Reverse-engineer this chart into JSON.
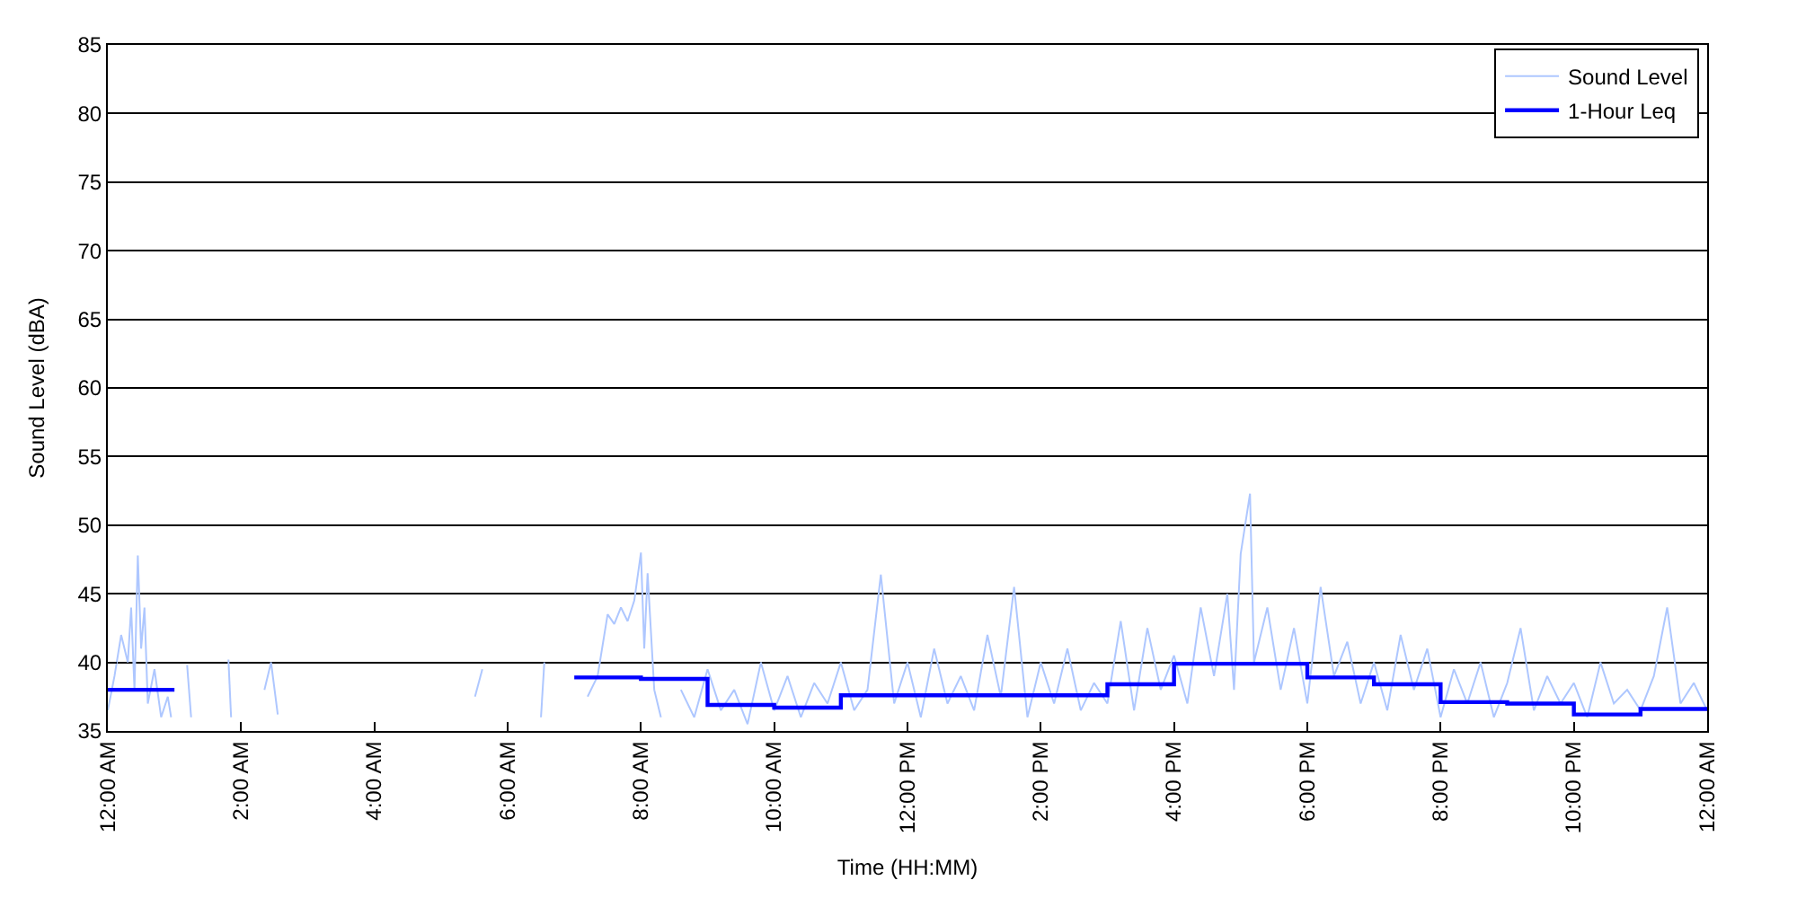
{
  "chart_data": {
    "type": "line",
    "xlabel": "Time (HH:MM)",
    "ylabel": "Sound Level (dBA)",
    "xlim": [
      0,
      24
    ],
    "ylim": [
      35,
      85
    ],
    "xticks": [
      {
        "value": 0,
        "label": "12:00 AM"
      },
      {
        "value": 2,
        "label": "2:00 AM"
      },
      {
        "value": 4,
        "label": "4:00 AM"
      },
      {
        "value": 6,
        "label": "6:00 AM"
      },
      {
        "value": 8,
        "label": "8:00 AM"
      },
      {
        "value": 10,
        "label": "10:00 AM"
      },
      {
        "value": 12,
        "label": "12:00 PM"
      },
      {
        "value": 14,
        "label": "2:00 PM"
      },
      {
        "value": 16,
        "label": "4:00 PM"
      },
      {
        "value": 18,
        "label": "6:00 PM"
      },
      {
        "value": 20,
        "label": "8:00 PM"
      },
      {
        "value": 22,
        "label": "10:00 PM"
      },
      {
        "value": 24,
        "label": "12:00 AM"
      }
    ],
    "yticks": [
      35,
      40,
      45,
      50,
      55,
      60,
      65,
      70,
      75,
      80,
      85
    ],
    "grid": "y",
    "legend": "top right",
    "series": [
      {
        "name": "Sound Level",
        "color": "#aec7ff",
        "x": [
          0,
          0.1,
          0.2,
          0.3,
          0.35,
          0.4,
          0.45,
          0.5,
          0.55,
          0.6,
          0.7,
          0.8,
          0.9,
          0.95,
          1.0,
          1.19,
          1.25,
          1.3,
          1.81,
          1.85,
          1.9,
          2.35,
          2.45,
          2.55,
          2.6,
          5.51,
          5.62,
          5.7,
          6.5,
          6.55,
          6.6,
          7.2,
          7.35,
          7.5,
          7.6,
          7.7,
          7.8,
          7.9,
          8.0,
          8.05,
          8.1,
          8.2,
          8.3,
          8.4,
          8.6,
          8.8,
          9.0,
          9.2,
          9.4,
          9.6,
          9.8,
          10.0,
          10.2,
          10.4,
          10.6,
          10.8,
          11.0,
          11.2,
          11.4,
          11.6,
          11.8,
          12.0,
          12.2,
          12.4,
          12.6,
          12.8,
          13.0,
          13.2,
          13.4,
          13.6,
          13.8,
          14.0,
          14.2,
          14.4,
          14.6,
          14.8,
          15.0,
          15.2,
          15.4,
          15.6,
          15.8,
          16.0,
          16.2,
          16.4,
          16.6,
          16.8,
          16.9,
          17.0,
          17.14,
          17.2,
          17.4,
          17.6,
          17.8,
          18.0,
          18.2,
          18.4,
          18.6,
          18.8,
          19.0,
          19.2,
          19.4,
          19.6,
          19.8,
          20.0,
          20.2,
          20.4,
          20.6,
          20.8,
          21.0,
          21.2,
          21.4,
          21.6,
          21.8,
          22.0,
          22.2,
          22.4,
          22.6,
          22.8,
          23.0,
          23.2,
          23.4,
          23.6,
          23.8,
          24.0
        ],
        "values": [
          36.5,
          39,
          42,
          40,
          44,
          38,
          47.8,
          41,
          44,
          37,
          39.5,
          36,
          37.5,
          36,
          null,
          39.8,
          36,
          null,
          40.2,
          36,
          null,
          38,
          40,
          36.2,
          null,
          37.5,
          39.5,
          null,
          36,
          40,
          null,
          37.5,
          39,
          43.5,
          42.8,
          44,
          43,
          44.5,
          48,
          41,
          46.5,
          38,
          36,
          null,
          38,
          36,
          39.5,
          36.5,
          38,
          35.5,
          40,
          36.5,
          39,
          36,
          38.5,
          37,
          40,
          36.5,
          38,
          46.4,
          37,
          40,
          36,
          41,
          37,
          39,
          36.5,
          42,
          37.5,
          45.5,
          36,
          40,
          37,
          41,
          36.5,
          38.5,
          37,
          43,
          36.5,
          42.5,
          38,
          40.5,
          37,
          44,
          39,
          45,
          38,
          47.9,
          52.3,
          40,
          44,
          38,
          42.5,
          37,
          45.5,
          39,
          41.5,
          37,
          40,
          36.5,
          42,
          38,
          41,
          36,
          39.5,
          37,
          40,
          36,
          38.5,
          42.5,
          36.5,
          39,
          37,
          38.5,
          36,
          40,
          37,
          38,
          36.5,
          39,
          44,
          37,
          38.5,
          36.5
        ]
      },
      {
        "name": "1-Hour Leq",
        "color": "#0000ff",
        "type": "step",
        "x": [
          0,
          1,
          2,
          3,
          4,
          5,
          6,
          7,
          8,
          9,
          10,
          11,
          12,
          13,
          14,
          15,
          16,
          17,
          18,
          19,
          20,
          21,
          22,
          23,
          24
        ],
        "values": [
          38.0,
          null,
          null,
          null,
          null,
          null,
          null,
          38.9,
          38.8,
          36.9,
          36.7,
          37.6,
          37.6,
          37.6,
          37.6,
          38.4,
          39.9,
          39.9,
          38.9,
          38.4,
          37.1,
          37.0,
          36.2,
          36.6,
          36.6
        ]
      }
    ]
  }
}
